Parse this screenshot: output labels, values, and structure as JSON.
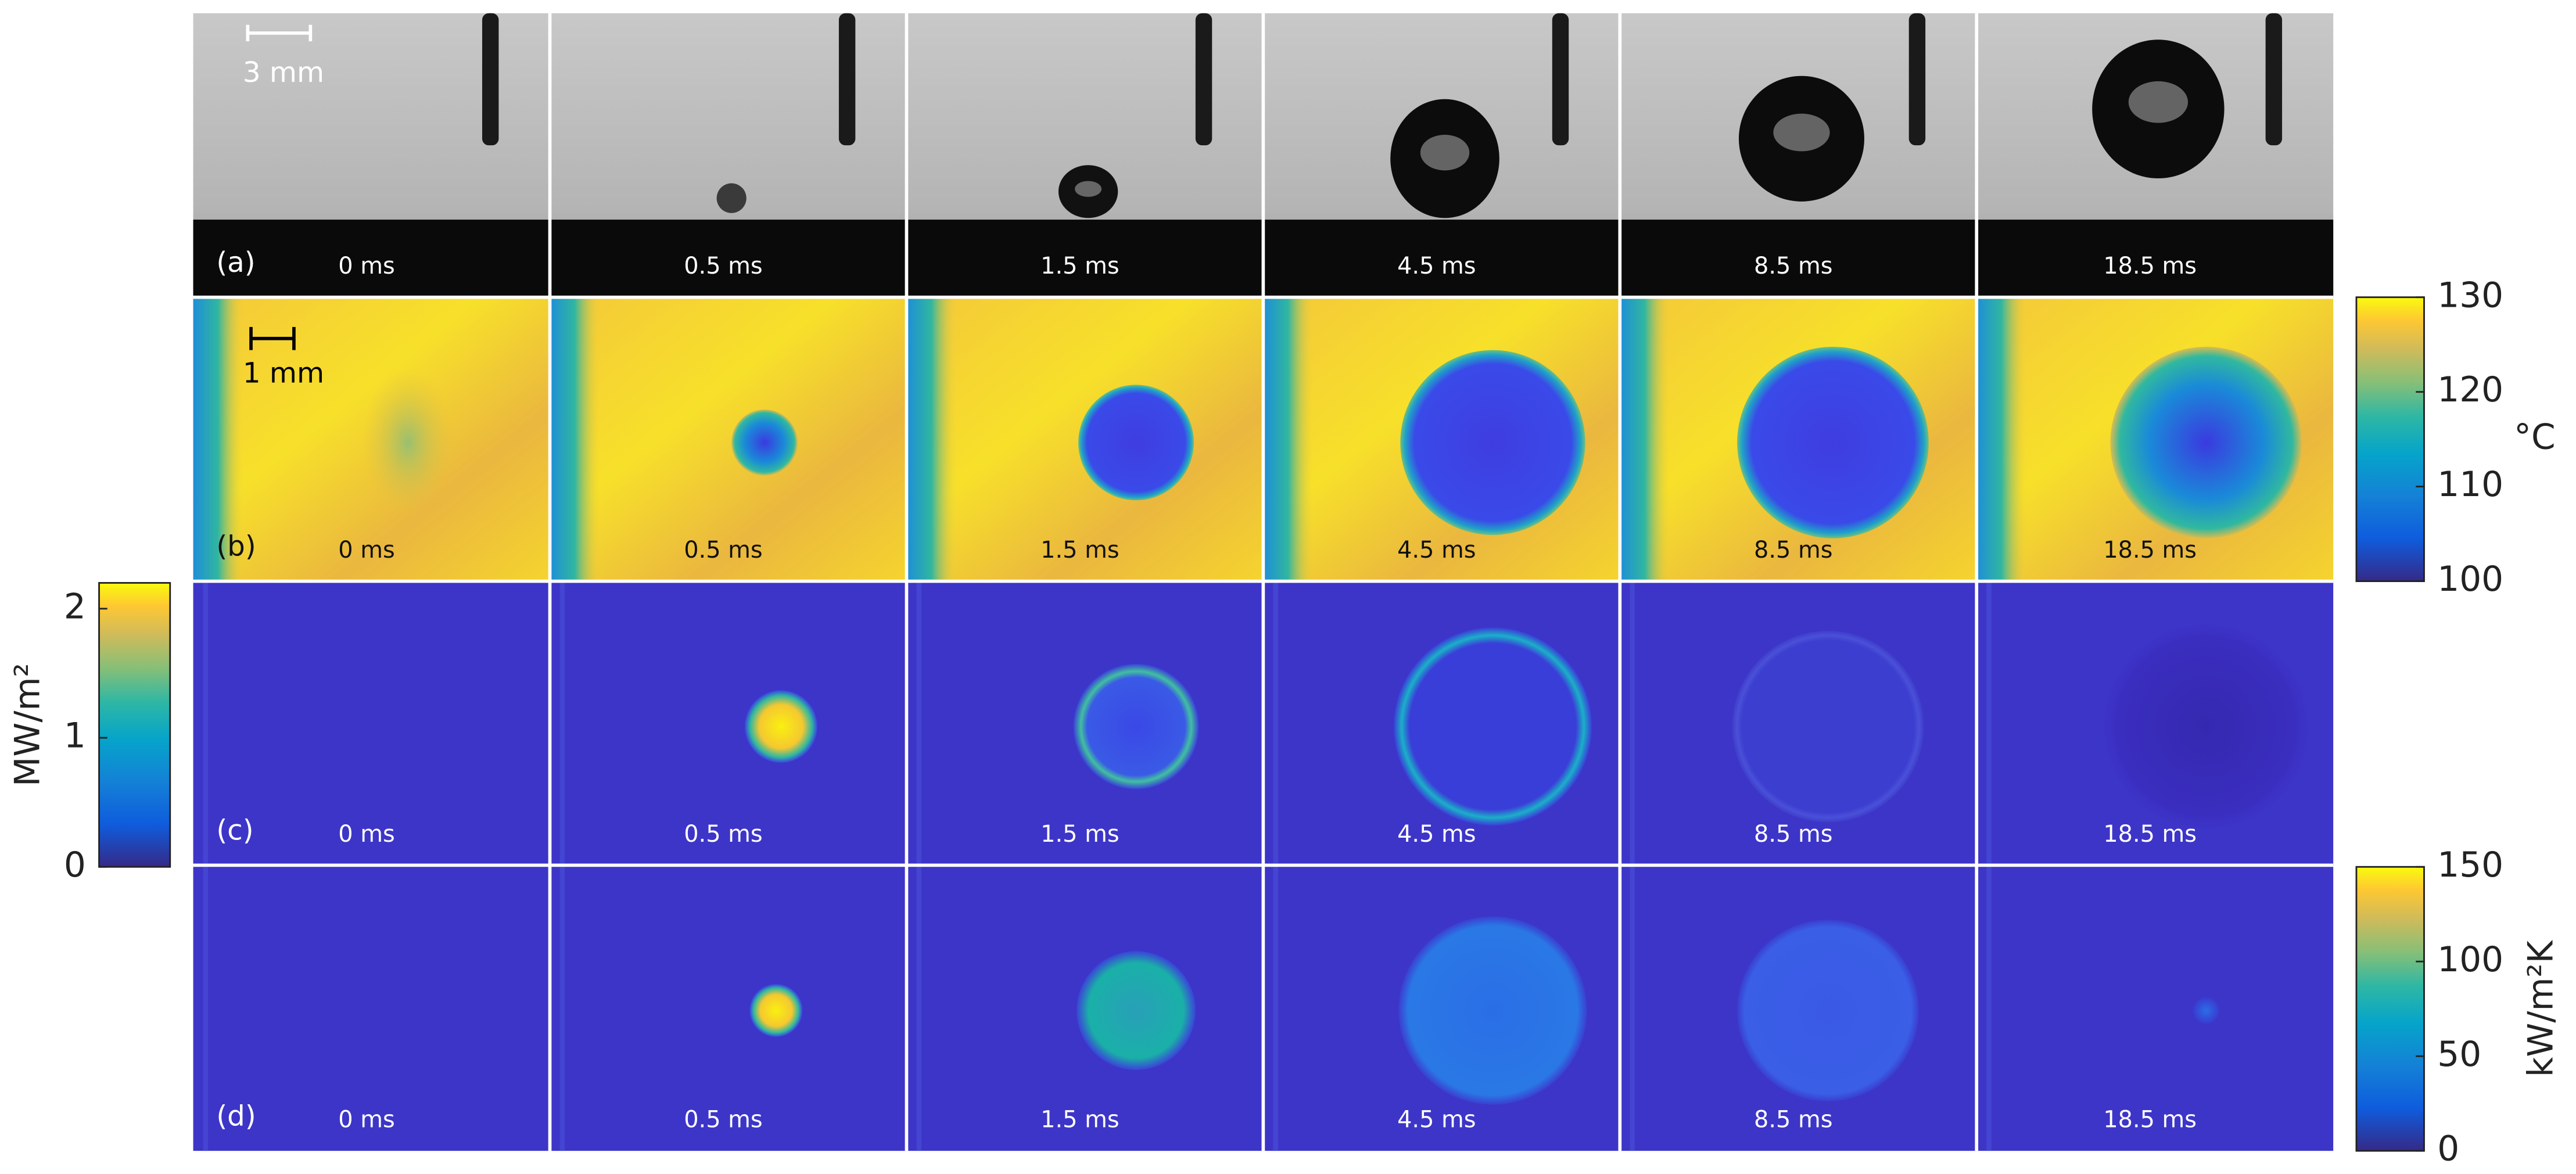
{
  "scale_bars": [
    "3 mm",
    "1 mm"
  ],
  "rows": [
    {
      "label": "(a)",
      "times": [
        "0 ms",
        "0.5 ms",
        "1.5 ms",
        "4.5 ms",
        "8.5 ms",
        "18.5 ms"
      ]
    },
    {
      "label": "(b)",
      "times": [
        "0 ms",
        "0.5 ms",
        "1.5 ms",
        "4.5 ms",
        "8.5 ms",
        "18.5 ms"
      ]
    },
    {
      "label": "(c)",
      "times": [
        "0 ms",
        "0.5 ms",
        "1.5 ms",
        "4.5 ms",
        "8.5 ms",
        "18.5 ms"
      ]
    },
    {
      "label": "(d)",
      "times": [
        "0 ms",
        "0.5 ms",
        "1.5 ms",
        "4.5 ms",
        "8.5 ms",
        "18.5 ms"
      ]
    }
  ],
  "colorbars": [
    {
      "unit": "°C",
      "lim": [
        100,
        130
      ],
      "ticks": [
        100,
        110,
        120,
        130
      ]
    },
    {
      "unit": "MW/m²",
      "lim": [
        0,
        2.2
      ],
      "ticks": [
        0,
        1,
        2
      ]
    },
    {
      "unit": "kW/m²K",
      "lim": [
        0,
        150
      ],
      "ticks": [
        0,
        50,
        100,
        150
      ]
    }
  ]
}
